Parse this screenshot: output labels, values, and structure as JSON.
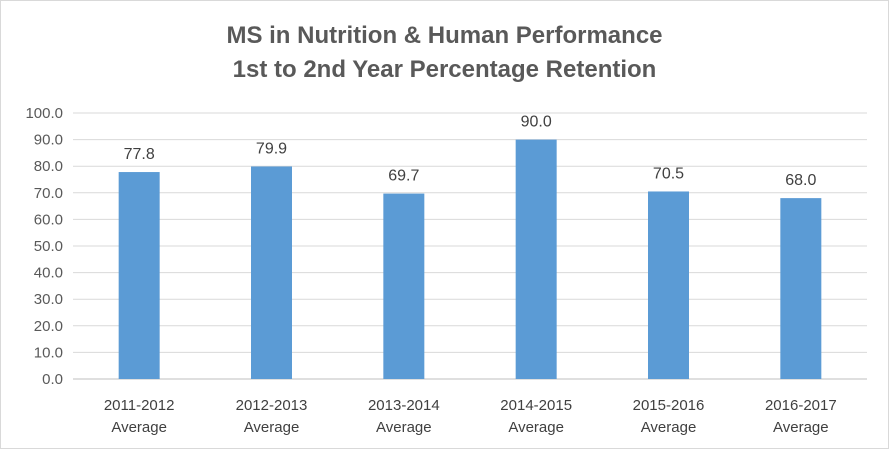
{
  "chart_data": {
    "type": "bar",
    "title": "MS in Nutrition & Human Performance",
    "subtitle": "1st to 2nd Year Percentage Retention",
    "categories": [
      [
        "2011-2012",
        "Average"
      ],
      [
        "2012-2013",
        "Average"
      ],
      [
        "2013-2014",
        "Average"
      ],
      [
        "2014-2015",
        "Average"
      ],
      [
        "2015-2016",
        "Average"
      ],
      [
        "2016-2017",
        "Average"
      ]
    ],
    "values": [
      77.8,
      79.9,
      69.7,
      90.0,
      70.5,
      68.0
    ],
    "data_labels": [
      "77.8",
      "79.9",
      "69.7",
      "90.0",
      "70.5",
      "68.0"
    ],
    "y_ticks": [
      "0.0",
      "10.0",
      "20.0",
      "30.0",
      "40.0",
      "50.0",
      "60.0",
      "70.0",
      "80.0",
      "90.0",
      "100.0"
    ],
    "ylim": [
      0,
      100
    ],
    "xlabel": "",
    "ylabel": "",
    "grid": true,
    "legend": "none",
    "colors": {
      "bar": "#5b9bd5",
      "grid": "#d9d9d9",
      "axis": "#bfbfbf",
      "text": "#595959"
    }
  }
}
